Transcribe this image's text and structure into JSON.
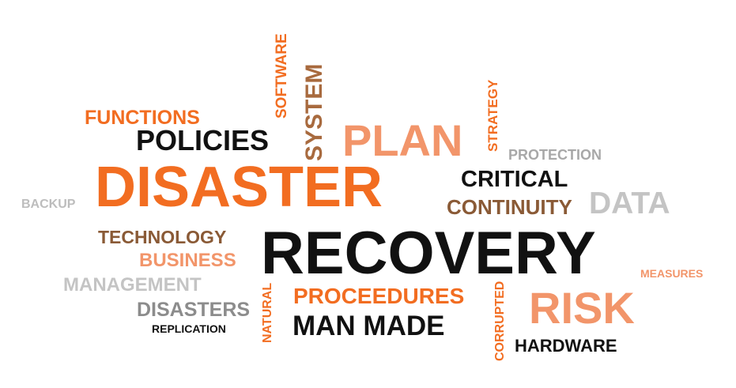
{
  "colors": {
    "orange": "#f26d21",
    "light_orange": "#f2956a",
    "black": "#111111",
    "brown": "#8a5a36",
    "gray": "#bdbdbd",
    "dark_gray": "#8c8c8c"
  },
  "words": {
    "functions": "FUNCTIONS",
    "policies": "POLICIES",
    "software": "SOFTWARE",
    "system": "SYSTEM",
    "plan": "PLAN",
    "strategy": "STRATEGY",
    "protection": "PROTECTION",
    "disaster": "DISASTER",
    "critical": "CRITICAL",
    "backup": "BACKUP",
    "continuity": "CONTINUITY",
    "data": "DATA",
    "technology": "TECHNOLOGY",
    "recovery": "RECOVERY",
    "business": "BUSINESS",
    "measures": "MEASURES",
    "management": "MANAGEMENT",
    "natural": "NATURAL",
    "proceedures": "PROCEEDURES",
    "corrupted": "CORRUPTED",
    "risk": "RISK",
    "disasters": "DISASTERS",
    "replication": "REPLICATION",
    "man_made": "MAN MADE",
    "hardware": "HARDWARE"
  }
}
